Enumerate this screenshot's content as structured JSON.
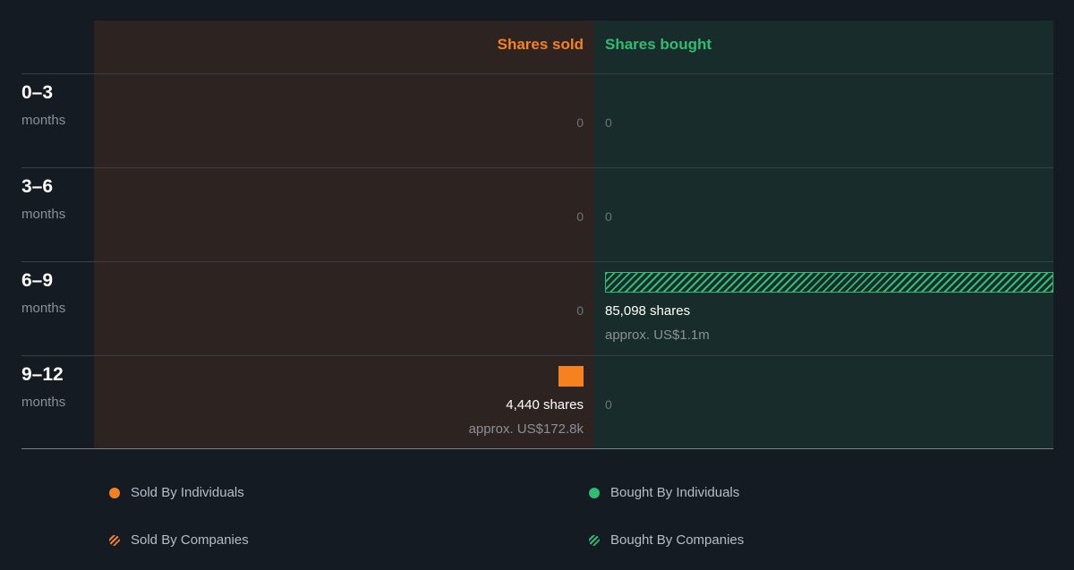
{
  "headers": {
    "sold": "Shares sold",
    "bought": "Shares bought"
  },
  "colors": {
    "sold": "#f5821f",
    "bought": "#2ebd72",
    "background": "#151b23"
  },
  "chart_data": {
    "type": "bar",
    "categories": [
      "0–3 months",
      "3–6 months",
      "6–9 months",
      "9–12 months"
    ],
    "series": [
      {
        "name": "Sold By Individuals",
        "values": [
          0,
          0,
          0,
          4440
        ]
      },
      {
        "name": "Sold By Companies",
        "values": [
          0,
          0,
          0,
          0
        ]
      },
      {
        "name": "Bought By Individuals",
        "values": [
          0,
          0,
          0,
          0
        ]
      },
      {
        "name": "Bought By Companies",
        "values": [
          0,
          0,
          85098,
          0
        ]
      }
    ]
  },
  "rows": [
    {
      "period": "0–3",
      "unit": "months",
      "sold": {
        "zero": "0"
      },
      "bought": {
        "zero": "0"
      }
    },
    {
      "period": "3–6",
      "unit": "months",
      "sold": {
        "zero": "0"
      },
      "bought": {
        "zero": "0"
      }
    },
    {
      "period": "6–9",
      "unit": "months",
      "sold": {
        "zero": "0"
      },
      "bought": {
        "shares": "85,098 shares",
        "approx": "approx. US$1.1m"
      }
    },
    {
      "period": "9–12",
      "unit": "months",
      "sold": {
        "shares": "4,440 shares",
        "approx": "approx. US$172.8k"
      },
      "bought": {
        "zero": "0"
      }
    }
  ],
  "legend": {
    "sold_individuals": "Sold By Individuals",
    "bought_individuals": "Bought By Individuals",
    "sold_companies": "Sold By Companies",
    "bought_companies": "Bought By Companies"
  }
}
